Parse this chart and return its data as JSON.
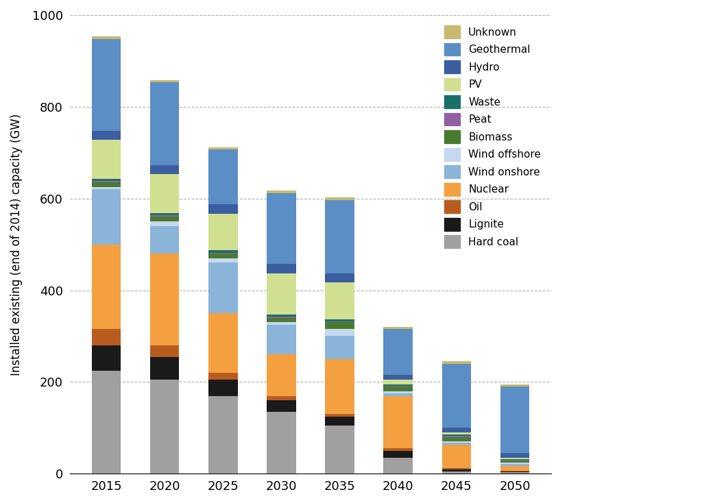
{
  "years": [
    2015,
    2020,
    2025,
    2030,
    2035,
    2040,
    2045,
    2050
  ],
  "categories": [
    "Hard coal",
    "Lignite",
    "Oil",
    "Nuclear",
    "Wind onshore",
    "Wind offshore",
    "Biomass",
    "Peat",
    "Waste",
    "PV",
    "Hydro",
    "Geothermal",
    "Unknown"
  ],
  "colors": {
    "Hard coal": "#a0a0a0",
    "Lignite": "#1a1a1a",
    "Oil": "#b85c20",
    "Nuclear": "#f5a040",
    "Wind onshore": "#8ab4d8",
    "Wind offshore": "#c5d8f0",
    "Biomass": "#4a7a30",
    "Peat": "#9060a0",
    "Waste": "#1a7068",
    "PV": "#d0e090",
    "Hydro": "#3a5ea0",
    "Geothermal": "#5b8ec4",
    "Unknown": "#c8b870"
  },
  "values": {
    "Hard coal": [
      225,
      205,
      170,
      135,
      105,
      35,
      5,
      3
    ],
    "Lignite": [
      55,
      50,
      35,
      25,
      20,
      15,
      5,
      2
    ],
    "Oil": [
      35,
      25,
      15,
      10,
      5,
      5,
      3,
      2
    ],
    "Nuclear": [
      185,
      200,
      130,
      90,
      120,
      115,
      50,
      10
    ],
    "Wind onshore": [
      120,
      60,
      110,
      65,
      50,
      5,
      5,
      5
    ],
    "Wind offshore": [
      5,
      10,
      10,
      5,
      15,
      5,
      2,
      2
    ],
    "Biomass": [
      10,
      10,
      10,
      10,
      15,
      10,
      10,
      5
    ],
    "Peat": [
      3,
      3,
      2,
      2,
      2,
      2,
      2,
      1
    ],
    "Waste": [
      5,
      5,
      5,
      5,
      5,
      3,
      3,
      2
    ],
    "PV": [
      85,
      85,
      80,
      90,
      80,
      10,
      5,
      3
    ],
    "Hydro": [
      20,
      20,
      20,
      20,
      20,
      10,
      10,
      10
    ],
    "Geothermal": [
      200,
      180,
      120,
      155,
      160,
      100,
      140,
      145
    ],
    "Unknown": [
      5,
      5,
      5,
      5,
      5,
      5,
      5,
      5
    ]
  },
  "ylabel": "Installed existing (end of 2014) capacity (GW)",
  "ylim": [
    0,
    1000
  ],
  "yticks": [
    0,
    200,
    400,
    600,
    800,
    1000
  ],
  "background_color": "#ffffff",
  "grid_color": "#b0b0b0"
}
